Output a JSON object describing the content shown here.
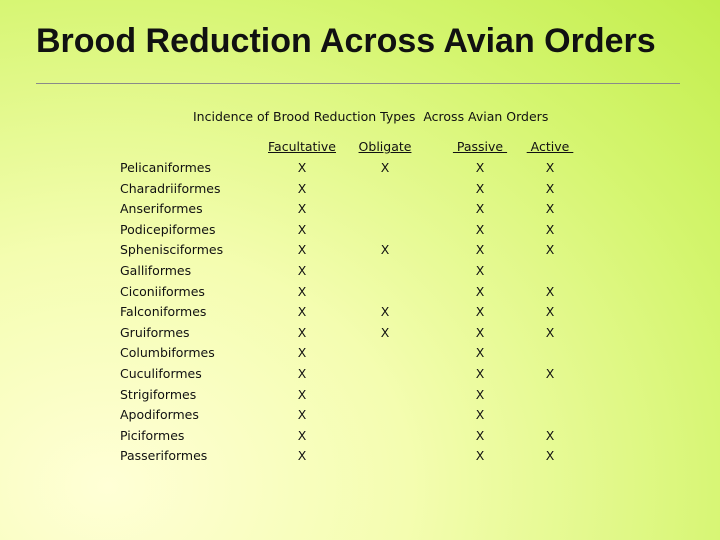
{
  "title": "Brood Reduction Across Avian Orders",
  "table": {
    "caption": "Incidence of Brood Reduction Types  Across Avian Orders",
    "columns": [
      "Facultative",
      "Obligate",
      " Passive ",
      " Active "
    ],
    "rows": [
      {
        "order": "Pelicaniformes",
        "cells": [
          "X",
          "X",
          "X",
          "X"
        ]
      },
      {
        "order": "Charadriiformes",
        "cells": [
          "X",
          "",
          "X",
          "X"
        ]
      },
      {
        "order": "Anseriformes",
        "cells": [
          "X",
          "",
          "X",
          "X"
        ]
      },
      {
        "order": "Podicepiformes",
        "cells": [
          "X",
          "",
          "X",
          "X"
        ]
      },
      {
        "order": "Sphenisciformes",
        "cells": [
          "X",
          "X",
          "X",
          "X"
        ]
      },
      {
        "order": "Galliformes",
        "cells": [
          "X",
          "",
          "X",
          ""
        ]
      },
      {
        "order": "Ciconiiformes",
        "cells": [
          "X",
          "",
          "X",
          "X"
        ]
      },
      {
        "order": "Falconiformes",
        "cells": [
          "X",
          "X",
          "X",
          "X"
        ]
      },
      {
        "order": "Gruiformes",
        "cells": [
          "X",
          "X",
          "X",
          "X"
        ]
      },
      {
        "order": "Columbiformes",
        "cells": [
          "X",
          "",
          "X",
          ""
        ]
      },
      {
        "order": "Cuculiformes",
        "cells": [
          "X",
          "",
          "X",
          "X"
        ]
      },
      {
        "order": "Strigiformes",
        "cells": [
          "X",
          "",
          "X",
          ""
        ]
      },
      {
        "order": "Apodiformes",
        "cells": [
          "X",
          "",
          "X",
          ""
        ]
      },
      {
        "order": "Piciformes",
        "cells": [
          "X",
          "",
          "X",
          "X"
        ]
      },
      {
        "order": "Passeriformes",
        "cells": [
          "X",
          "",
          "X",
          "X"
        ]
      }
    ]
  }
}
